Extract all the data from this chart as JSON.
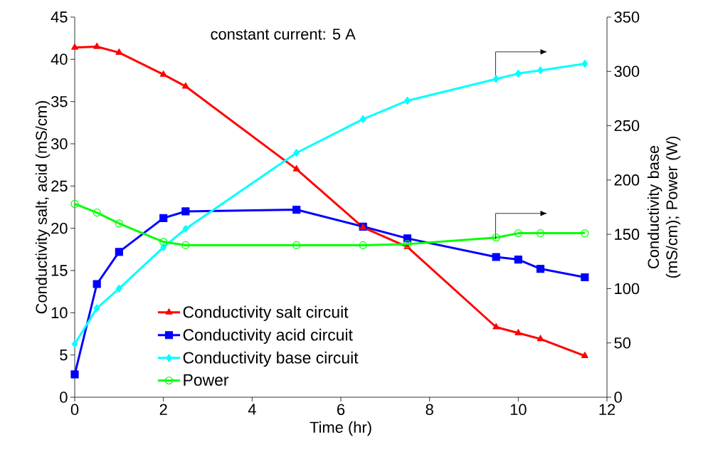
{
  "chart_data": {
    "type": "line",
    "x": [
      0,
      0.5,
      1,
      2,
      2.5,
      5,
      6.5,
      7.5,
      9.5,
      10,
      10.5,
      11.5
    ],
    "xlabel": "Time (hr)",
    "ylabel": "Conductivity salt, acid (mS/cm)",
    "y2label": "Conductivity base (mS/cm); Power (W)",
    "xlim": [
      0,
      12
    ],
    "xticks": [
      0,
      2,
      4,
      6,
      8,
      10,
      12
    ],
    "ylim": [
      0,
      45
    ],
    "yticks": [
      0,
      5,
      10,
      15,
      20,
      25,
      30,
      35,
      40,
      45
    ],
    "y2lim": [
      0,
      350
    ],
    "y2ticks": [
      0,
      50,
      100,
      150,
      200,
      250,
      300,
      350
    ],
    "annotations": [
      "constant current: 5 A"
    ],
    "legend": "bottom left",
    "grid": false,
    "series": [
      {
        "name": "Conductivity salt circuit",
        "color": "#ff0000",
        "marker": "triangle",
        "values": [
          41.4,
          41.5,
          40.8,
          38.2,
          36.8,
          27,
          20.1,
          17.8,
          8.3,
          7.6,
          6.9,
          4.9
        ]
      },
      {
        "name": "Conductivity acid circuit",
        "color": "#0000ff",
        "marker": "square",
        "values": [
          2.7,
          13.4,
          17.2,
          21.2,
          22.0,
          22.2,
          20.2,
          18.8,
          16.6,
          16.3,
          15.2,
          14.2
        ]
      },
      {
        "name": "Conductivity base circuit",
        "color": "#00ffff",
        "marker": "diamond",
        "axis": "y2",
        "values": [
          49,
          82,
          100,
          138,
          155,
          225,
          256,
          273,
          293,
          298,
          301,
          307
        ]
      },
      {
        "name": "Power",
        "color": "#00ff00",
        "marker": "circle",
        "axis": "y2",
        "values": [
          178,
          170,
          160,
          143,
          140,
          140,
          140,
          141,
          147,
          151,
          151,
          151
        ]
      }
    ]
  }
}
